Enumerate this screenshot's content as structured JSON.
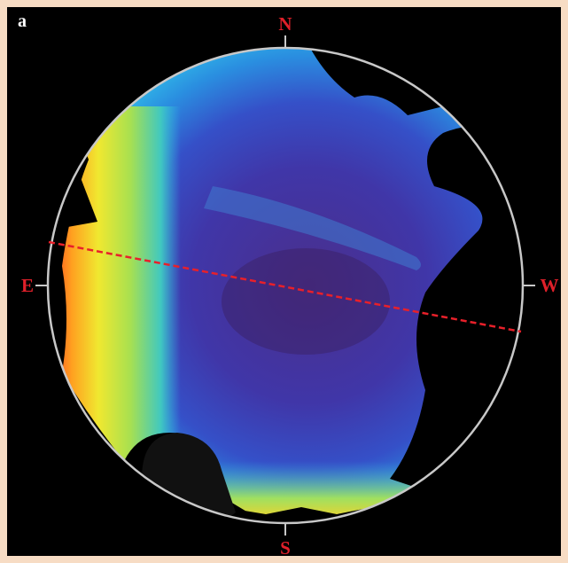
{
  "panel_label": "a",
  "compass": {
    "north": "N",
    "east": "E",
    "south": "S",
    "west": "W"
  }
}
